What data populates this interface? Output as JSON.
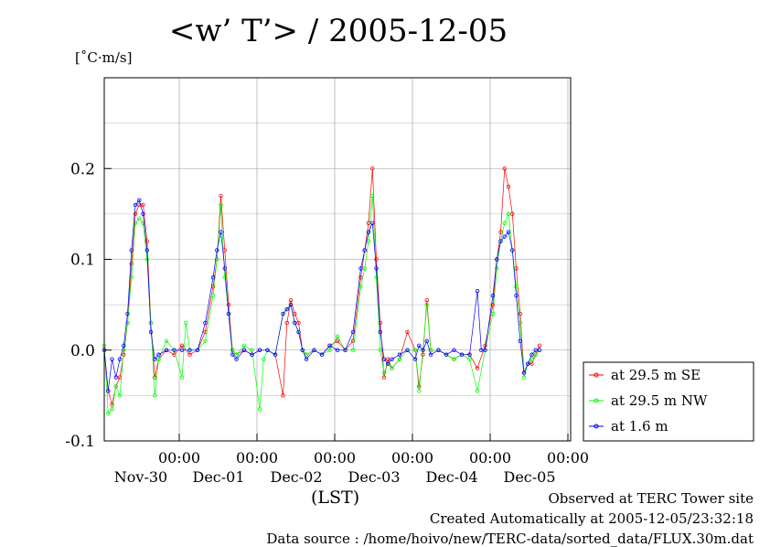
{
  "title": "<w’ T’> / 2005-12-05",
  "unit_label": "[˚C·m/s]",
  "x_axis_label": "(LST)",
  "footer": {
    "line1": "Observed at TERC Tower site",
    "line2": "Created Automatically at 2005-12-05/23:32:18",
    "line3": "Data source : /home/hoivo/new/TERC-data/sorted_data/FLUX.30m.dat"
  },
  "chart_data": {
    "type": "line",
    "title": "<w’ T’> / 2005-12-05",
    "ylabel": "[˚C·m/s]",
    "xlabel": "(LST)",
    "ylim": [
      -0.1,
      0.3
    ],
    "xlim": [
      0,
      6
    ],
    "x_unit": "days from 2005-11-29 12:00 LST",
    "yticks": [
      -0.1,
      0.0,
      0.1,
      0.2
    ],
    "ytick_labels": [
      "-0.1",
      "0.0",
      "0.1",
      "0.2"
    ],
    "xticks": [
      {
        "x": 1.0,
        "time": "00:00",
        "date": "Nov-30"
      },
      {
        "x": 2.0,
        "time": "00:00",
        "date": "Dec-01"
      },
      {
        "x": 3.0,
        "time": "00:00",
        "date": "Dec-02"
      },
      {
        "x": 4.0,
        "time": "00:00",
        "date": "Dec-03"
      },
      {
        "x": 5.0,
        "time": "00:00",
        "date": "Dec-04"
      },
      {
        "x": 6.0,
        "time": "00:00",
        "date": "Dec-05"
      }
    ],
    "grid": true,
    "legend_position": "right",
    "series": [
      {
        "name": "at 29.5 m SE",
        "color": "#ff0000",
        "points": [
          [
            0.0,
            0.0
          ],
          [
            0.05,
            -0.045
          ],
          [
            0.1,
            -0.06
          ],
          [
            0.15,
            -0.04
          ],
          [
            0.2,
            -0.03
          ],
          [
            0.25,
            -0.005
          ],
          [
            0.3,
            0.03
          ],
          [
            0.35,
            0.095
          ],
          [
            0.4,
            0.15
          ],
          [
            0.45,
            0.16
          ],
          [
            0.5,
            0.16
          ],
          [
            0.55,
            0.12
          ],
          [
            0.6,
            0.03
          ],
          [
            0.65,
            -0.03
          ],
          [
            0.7,
            -0.01
          ],
          [
            0.8,
            0.0
          ],
          [
            0.9,
            -0.005
          ],
          [
            1.0,
            0.005
          ],
          [
            1.1,
            -0.005
          ],
          [
            1.2,
            0.0
          ],
          [
            1.3,
            0.02
          ],
          [
            1.4,
            0.07
          ],
          [
            1.45,
            0.1
          ],
          [
            1.5,
            0.17
          ],
          [
            1.55,
            0.11
          ],
          [
            1.6,
            0.05
          ],
          [
            1.65,
            0.0
          ],
          [
            1.7,
            -0.005
          ],
          [
            1.8,
            0.0
          ],
          [
            1.9,
            -0.005
          ],
          [
            2.0,
            0.0
          ],
          [
            2.1,
            0.0
          ],
          [
            2.2,
            -0.005
          ],
          [
            2.3,
            -0.05
          ],
          [
            2.35,
            0.03
          ],
          [
            2.4,
            0.055
          ],
          [
            2.45,
            0.04
          ],
          [
            2.5,
            0.03
          ],
          [
            2.55,
            0.0
          ],
          [
            2.6,
            -0.005
          ],
          [
            2.7,
            0.0
          ],
          [
            2.8,
            -0.005
          ],
          [
            2.9,
            0.005
          ],
          [
            3.0,
            0.01
          ],
          [
            3.1,
            0.0
          ],
          [
            3.2,
            0.01
          ],
          [
            3.3,
            0.08
          ],
          [
            3.35,
            0.11
          ],
          [
            3.4,
            0.14
          ],
          [
            3.45,
            0.2
          ],
          [
            3.5,
            0.1
          ],
          [
            3.55,
            0.03
          ],
          [
            3.6,
            -0.03
          ],
          [
            3.65,
            -0.01
          ],
          [
            3.7,
            -0.02
          ],
          [
            3.8,
            -0.01
          ],
          [
            3.9,
            0.02
          ],
          [
            4.0,
            0.0
          ],
          [
            4.05,
            -0.04
          ],
          [
            4.1,
            -0.005
          ],
          [
            4.15,
            0.055
          ],
          [
            4.2,
            0.0
          ],
          [
            4.3,
            0.0
          ],
          [
            4.4,
            -0.005
          ],
          [
            4.5,
            -0.01
          ],
          [
            4.6,
            -0.005
          ],
          [
            4.7,
            -0.005
          ],
          [
            4.8,
            -0.02
          ],
          [
            4.9,
            0.005
          ],
          [
            5.0,
            0.05
          ],
          [
            5.05,
            0.1
          ],
          [
            5.1,
            0.13
          ],
          [
            5.15,
            0.2
          ],
          [
            5.2,
            0.18
          ],
          [
            5.25,
            0.15
          ],
          [
            5.3,
            0.09
          ],
          [
            5.35,
            0.04
          ],
          [
            5.4,
            -0.025
          ],
          [
            5.45,
            -0.015
          ],
          [
            5.5,
            -0.015
          ],
          [
            5.55,
            -0.005
          ],
          [
            5.6,
            0.005
          ]
        ]
      },
      {
        "name": "at 29.5 m NW",
        "color": "#00ff00",
        "points": [
          [
            0.0,
            0.005
          ],
          [
            0.05,
            -0.07
          ],
          [
            0.1,
            -0.065
          ],
          [
            0.15,
            -0.04
          ],
          [
            0.2,
            -0.05
          ],
          [
            0.25,
            0.0
          ],
          [
            0.3,
            0.03
          ],
          [
            0.35,
            0.08
          ],
          [
            0.4,
            0.14
          ],
          [
            0.45,
            0.145
          ],
          [
            0.5,
            0.14
          ],
          [
            0.55,
            0.1
          ],
          [
            0.6,
            0.03
          ],
          [
            0.65,
            -0.05
          ],
          [
            0.7,
            -0.01
          ],
          [
            0.8,
            0.01
          ],
          [
            0.9,
            0.0
          ],
          [
            1.0,
            -0.03
          ],
          [
            1.05,
            0.03
          ],
          [
            1.1,
            0.0
          ],
          [
            1.2,
            0.0
          ],
          [
            1.3,
            0.01
          ],
          [
            1.4,
            0.06
          ],
          [
            1.45,
            0.1
          ],
          [
            1.5,
            0.16
          ],
          [
            1.55,
            0.08
          ],
          [
            1.6,
            0.04
          ],
          [
            1.65,
            0.0
          ],
          [
            1.7,
            -0.005
          ],
          [
            1.8,
            0.005
          ],
          [
            1.9,
            0.0
          ],
          [
            2.0,
            -0.065
          ],
          [
            2.05,
            -0.01
          ],
          [
            2.1,
            0.0
          ],
          [
            2.2,
            -0.005
          ],
          [
            2.3,
            0.04
          ],
          [
            2.35,
            0.045
          ],
          [
            2.4,
            0.05
          ],
          [
            2.45,
            0.03
          ],
          [
            2.5,
            0.02
          ],
          [
            2.55,
            0.0
          ],
          [
            2.6,
            -0.005
          ],
          [
            2.7,
            0.0
          ],
          [
            2.8,
            -0.005
          ],
          [
            2.9,
            0.0
          ],
          [
            3.0,
            0.015
          ],
          [
            3.1,
            0.0
          ],
          [
            3.2,
            0.0
          ],
          [
            3.3,
            0.07
          ],
          [
            3.35,
            0.09
          ],
          [
            3.4,
            0.12
          ],
          [
            3.45,
            0.17
          ],
          [
            3.5,
            0.08
          ],
          [
            3.55,
            0.0
          ],
          [
            3.6,
            -0.025
          ],
          [
            3.65,
            -0.015
          ],
          [
            3.7,
            -0.02
          ],
          [
            3.8,
            -0.01
          ],
          [
            3.9,
            0.0
          ],
          [
            4.0,
            0.0
          ],
          [
            4.05,
            -0.045
          ],
          [
            4.1,
            0.0
          ],
          [
            4.15,
            0.05
          ],
          [
            4.2,
            0.0
          ],
          [
            4.3,
            0.0
          ],
          [
            4.4,
            -0.005
          ],
          [
            4.5,
            -0.01
          ],
          [
            4.6,
            -0.005
          ],
          [
            4.7,
            -0.01
          ],
          [
            4.8,
            -0.045
          ],
          [
            4.9,
            0.0
          ],
          [
            5.0,
            0.04
          ],
          [
            5.05,
            0.09
          ],
          [
            5.1,
            0.12
          ],
          [
            5.15,
            0.14
          ],
          [
            5.2,
            0.15
          ],
          [
            5.25,
            0.11
          ],
          [
            5.3,
            0.07
          ],
          [
            5.35,
            0.03
          ],
          [
            5.4,
            -0.03
          ],
          [
            5.45,
            -0.015
          ],
          [
            5.5,
            -0.01
          ],
          [
            5.55,
            -0.005
          ],
          [
            5.6,
            0.0
          ]
        ]
      },
      {
        "name": "at 1.6 m",
        "color": "#0000ff",
        "points": [
          [
            0.0,
            0.0
          ],
          [
            0.05,
            -0.045
          ],
          [
            0.1,
            -0.01
          ],
          [
            0.15,
            -0.03
          ],
          [
            0.2,
            -0.01
          ],
          [
            0.25,
            0.005
          ],
          [
            0.3,
            0.04
          ],
          [
            0.35,
            0.11
          ],
          [
            0.4,
            0.16
          ],
          [
            0.45,
            0.165
          ],
          [
            0.5,
            0.15
          ],
          [
            0.55,
            0.11
          ],
          [
            0.6,
            0.02
          ],
          [
            0.65,
            -0.01
          ],
          [
            0.7,
            -0.005
          ],
          [
            0.8,
            0.0
          ],
          [
            0.9,
            0.0
          ],
          [
            1.0,
            0.0
          ],
          [
            1.1,
            0.0
          ],
          [
            1.2,
            0.0
          ],
          [
            1.3,
            0.03
          ],
          [
            1.4,
            0.08
          ],
          [
            1.45,
            0.11
          ],
          [
            1.5,
            0.13
          ],
          [
            1.55,
            0.09
          ],
          [
            1.6,
            0.04
          ],
          [
            1.65,
            -0.005
          ],
          [
            1.7,
            -0.01
          ],
          [
            1.8,
            0.0
          ],
          [
            1.9,
            -0.005
          ],
          [
            2.0,
            0.0
          ],
          [
            2.1,
            0.0
          ],
          [
            2.2,
            -0.005
          ],
          [
            2.3,
            0.04
          ],
          [
            2.35,
            0.045
          ],
          [
            2.4,
            0.05
          ],
          [
            2.45,
            0.03
          ],
          [
            2.5,
            0.02
          ],
          [
            2.55,
            0.0
          ],
          [
            2.6,
            -0.01
          ],
          [
            2.7,
            0.0
          ],
          [
            2.8,
            -0.005
          ],
          [
            2.9,
            0.005
          ],
          [
            3.0,
            0.0
          ],
          [
            3.1,
            0.0
          ],
          [
            3.2,
            0.02
          ],
          [
            3.3,
            0.09
          ],
          [
            3.35,
            0.11
          ],
          [
            3.4,
            0.13
          ],
          [
            3.45,
            0.14
          ],
          [
            3.5,
            0.09
          ],
          [
            3.55,
            0.02
          ],
          [
            3.6,
            -0.01
          ],
          [
            3.65,
            -0.015
          ],
          [
            3.7,
            -0.01
          ],
          [
            3.8,
            -0.005
          ],
          [
            3.9,
            0.0
          ],
          [
            4.0,
            -0.01
          ],
          [
            4.05,
            0.005
          ],
          [
            4.1,
            0.0
          ],
          [
            4.15,
            0.01
          ],
          [
            4.2,
            -0.005
          ],
          [
            4.3,
            0.0
          ],
          [
            4.4,
            -0.005
          ],
          [
            4.5,
            0.0
          ],
          [
            4.6,
            -0.005
          ],
          [
            4.7,
            -0.005
          ],
          [
            4.8,
            0.065
          ],
          [
            4.85,
            0.0
          ],
          [
            4.9,
            0.0
          ],
          [
            5.0,
            0.06
          ],
          [
            5.05,
            0.1
          ],
          [
            5.1,
            0.12
          ],
          [
            5.15,
            0.125
          ],
          [
            5.2,
            0.13
          ],
          [
            5.25,
            0.11
          ],
          [
            5.3,
            0.06
          ],
          [
            5.35,
            0.01
          ],
          [
            5.4,
            -0.025
          ],
          [
            5.45,
            -0.015
          ],
          [
            5.5,
            -0.005
          ],
          [
            5.55,
            0.0
          ],
          [
            5.6,
            0.0
          ]
        ]
      }
    ]
  }
}
